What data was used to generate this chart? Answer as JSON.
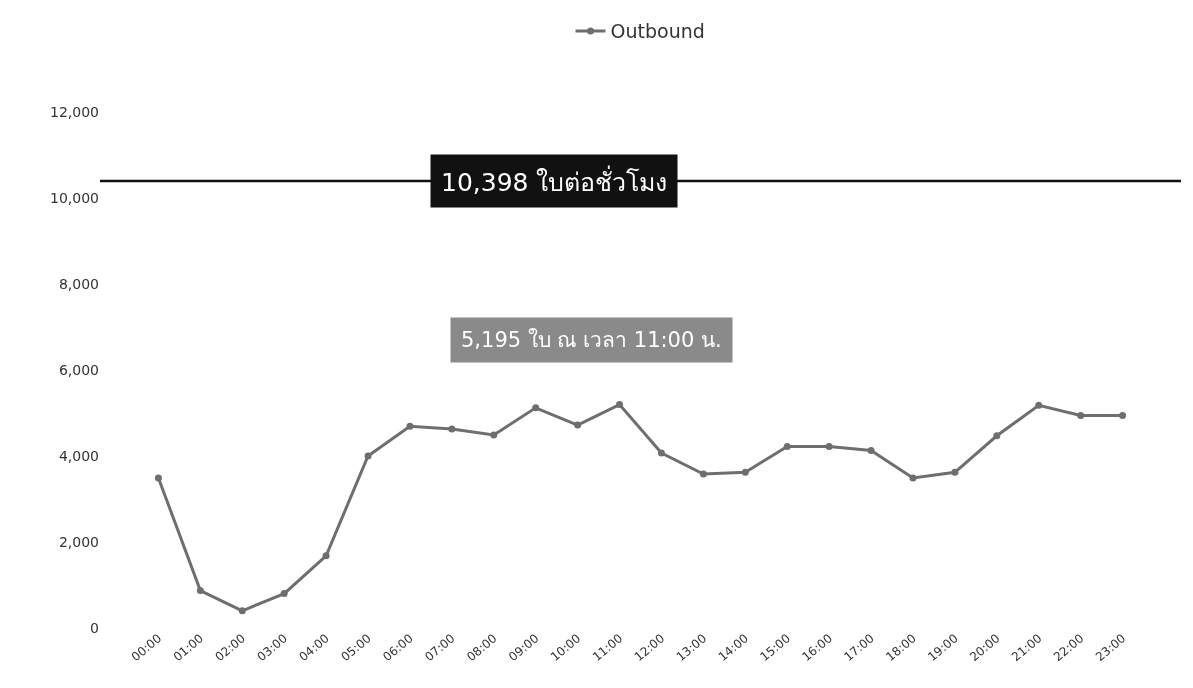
{
  "chart_data": {
    "type": "line",
    "categories": [
      "00:00",
      "01:00",
      "02:00",
      "03:00",
      "04:00",
      "05:00",
      "06:00",
      "07:00",
      "08:00",
      "09:00",
      "10:00",
      "11:00",
      "12:00",
      "13:00",
      "14:00",
      "15:00",
      "16:00",
      "17:00",
      "18:00",
      "19:00",
      "20:00",
      "21:00",
      "22:00",
      "23:00"
    ],
    "series": [
      {
        "name": "Outbound",
        "color": "#6e6e6e",
        "values": [
          3490,
          870,
          400,
          800,
          1680,
          4000,
          4690,
          4630,
          4490,
          5120,
          4720,
          5195,
          4070,
          3580,
          3620,
          4220,
          4220,
          4130,
          3490,
          3620,
          4470,
          5180,
          4940,
          4940
        ]
      }
    ],
    "ylim": [
      0,
      12000
    ],
    "yticks": [
      {
        "value": 0,
        "label": "0"
      },
      {
        "value": 2000,
        "label": "2,000"
      },
      {
        "value": 4000,
        "label": "4,000"
      },
      {
        "value": 6000,
        "label": "6,000"
      },
      {
        "value": 8000,
        "label": "8,000"
      },
      {
        "value": 10000,
        "label": "10,000"
      },
      {
        "value": 12000,
        "label": "12,000"
      }
    ],
    "ref_lines": [
      {
        "axis": "y",
        "value": 10398,
        "label": "10,398 ใบต่อชั่วโมง",
        "color": "#111111"
      }
    ],
    "annotations": [
      "5,195 ใบ ณ เวลา 11:00 น."
    ],
    "grid": false,
    "legend": "top",
    "marker": "circle",
    "line_style": "solid"
  }
}
